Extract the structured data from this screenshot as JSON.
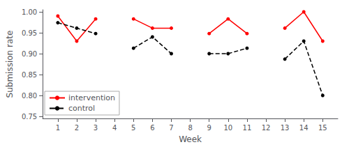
{
  "chart_data": {
    "type": "line",
    "x": [
      1,
      2,
      3,
      4,
      5,
      6,
      7,
      8,
      9,
      10,
      11,
      12,
      13,
      14,
      15
    ],
    "series": [
      {
        "name": "intervention",
        "color": "#FF0000",
        "line_style": "solid",
        "marker": "circle",
        "values": [
          0.99,
          0.93,
          0.983,
          null,
          0.983,
          0.961,
          0.961,
          null,
          0.948,
          0.983,
          0.948,
          null,
          0.961,
          1.0,
          0.93
        ]
      },
      {
        "name": "control",
        "color": "#000000",
        "line_style": "dashed",
        "marker": "circle",
        "values": [
          0.974,
          0.961,
          0.948,
          null,
          0.913,
          0.94,
          0.9,
          null,
          0.9,
          0.9,
          0.913,
          null,
          0.887,
          0.93,
          0.8
        ]
      }
    ],
    "xlabel": "Week",
    "ylabel": "Submission rate",
    "xlim": [
      0.2,
      15.8
    ],
    "xticks": [
      1,
      2,
      3,
      4,
      5,
      6,
      7,
      8,
      9,
      10,
      11,
      12,
      13,
      14,
      15
    ],
    "ylim": [
      0.745,
      1.005
    ],
    "yticks": [
      0.75,
      {
        "value": 0.8,
        "label": "0.80"
      },
      0.85,
      {
        "value": 0.9,
        "label": "0.90"
      },
      0.95,
      {
        "value": 1.0,
        "label": "1.00"
      }
    ],
    "grid": false,
    "legend": "lower left"
  }
}
